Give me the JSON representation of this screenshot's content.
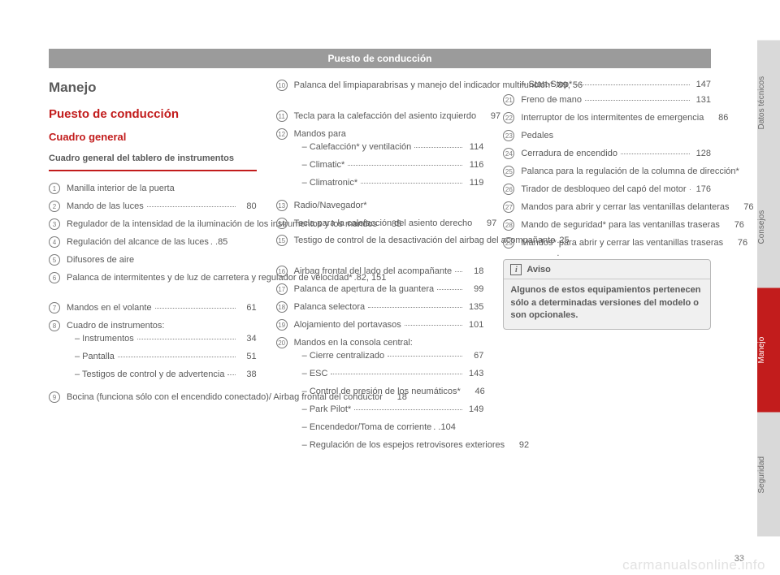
{
  "header": "Puesto de conducción",
  "col1": {
    "h1": "Manejo",
    "h2": "Puesto de conducción",
    "h3": "Cuadro general",
    "boxtitle": "Cuadro general del tablero de instrumentos",
    "items": [
      {
        "n": "1",
        "text": "Manilla interior de la puerta",
        "page": ""
      },
      {
        "n": "2",
        "text": "Mando de las luces",
        "page": "80"
      },
      {
        "n": "3",
        "text": "Regulador de la intensidad de la iluminación de los instrumentos y los mandos",
        "page": "85"
      },
      {
        "n": "4",
        "text": "Regulación del alcance de las luces",
        "page": "85",
        "tight": true
      },
      {
        "n": "5",
        "text": "Difusores de aire",
        "page": ""
      },
      {
        "n": "6",
        "text": "Palanca de intermitentes y de luz de carretera y regulador de velocidad*",
        "page": "82, 151",
        "tight": true
      },
      {
        "n": "7",
        "text": "Mandos en el volante",
        "page": "61"
      },
      {
        "n": "8",
        "text": "Cuadro de instrumentos:",
        "page": "",
        "subs": [
          {
            "text": "Instrumentos",
            "page": "34"
          },
          {
            "text": "Pantalla",
            "page": "51"
          },
          {
            "text": "Testigos de control y de advertencia",
            "page": "38"
          }
        ]
      },
      {
        "n": "9",
        "text": "Bocina (funciona sólo con el encendido conectado)/ Airbag frontal del conductor",
        "page": "18"
      }
    ]
  },
  "col2": {
    "items": [
      {
        "n": "10",
        "text": "Palanca del limpiaparabrisas y manejo del indicador multifunción*",
        "page": "89, 56",
        "tight": true
      },
      {
        "n": "11",
        "text": "Tecla para la calefacción del asiento izquierdo",
        "page": "97"
      },
      {
        "n": "12",
        "text": "Mandos para",
        "page": "",
        "subs": [
          {
            "text": "Calefacción* y ventilación",
            "page": "114"
          },
          {
            "text": "Climatic*",
            "page": "116"
          },
          {
            "text": "Climatronic*",
            "page": "119"
          }
        ]
      },
      {
        "n": "13",
        "text": "Radio/Navegador*",
        "page": ""
      },
      {
        "n": "14",
        "text": "Tecla para la calefacción del asiento derecho",
        "page": "97"
      },
      {
        "n": "15",
        "text": "Testigo de control de la desactivación del airbag del acompañante",
        "page": "25",
        "tight": true
      },
      {
        "n": "16",
        "text": "Airbag frontal del lado del acompañante",
        "page": "18"
      },
      {
        "n": "17",
        "text": "Palanca de apertura de la guantera",
        "page": "99"
      },
      {
        "n": "18",
        "text": "Palanca selectora",
        "page": "135"
      },
      {
        "n": "19",
        "text": "Alojamiento del portavasos",
        "page": "101"
      },
      {
        "n": "20",
        "text": "Mandos en la consola central:",
        "page": "",
        "subs": [
          {
            "text": "Cierre centralizado",
            "page": "67"
          },
          {
            "text": "ESC",
            "page": "143"
          },
          {
            "text": "Control de presión de los neumáticos*",
            "page": "46"
          },
          {
            "text": "Park Pilot*",
            "page": "149"
          },
          {
            "text": "Encendedor/Toma de corriente",
            "page": "104",
            "tight": true
          },
          {
            "text": "Regulación de los espejos retrovisores exteriores",
            "page": "92"
          }
        ]
      }
    ]
  },
  "col3": {
    "items_pre": [
      {
        "text": "Start-Stop*",
        "page": "147"
      }
    ],
    "items": [
      {
        "n": "21",
        "text": "Freno de mano",
        "page": "131"
      },
      {
        "n": "22",
        "text": "Interruptor de los intermitentes de emergencia",
        "page": "86"
      },
      {
        "n": "23",
        "text": "Pedales",
        "page": ""
      },
      {
        "n": "24",
        "text": "Cerradura de encendido",
        "page": "128"
      },
      {
        "n": "25",
        "text": "Palanca para la regulación de la columna de dirección*",
        "page": "7"
      },
      {
        "n": "26",
        "text": "Tirador de desbloqueo del capó del motor",
        "page": "176"
      },
      {
        "n": "27",
        "text": "Mandos para abrir y cerrar las ventanillas delanteras",
        "page": "76"
      },
      {
        "n": "28",
        "text": "Mando de seguridad* para las ventanillas traseras",
        "page": "76"
      },
      {
        "n": "29",
        "text": "Mandos* para abrir y cerrar las ventanillas traseras",
        "page": "76"
      }
    ],
    "aviso_title": "Aviso",
    "aviso_body": "Algunos de estos equipamientos pertenecen sólo a determinadas versiones del modelo o son opcionales."
  },
  "tabs": [
    "Datos técnicos",
    "Consejos",
    "Manejo",
    "Seguridad"
  ],
  "page_number": "33",
  "watermark": "carmanualsonline.info"
}
